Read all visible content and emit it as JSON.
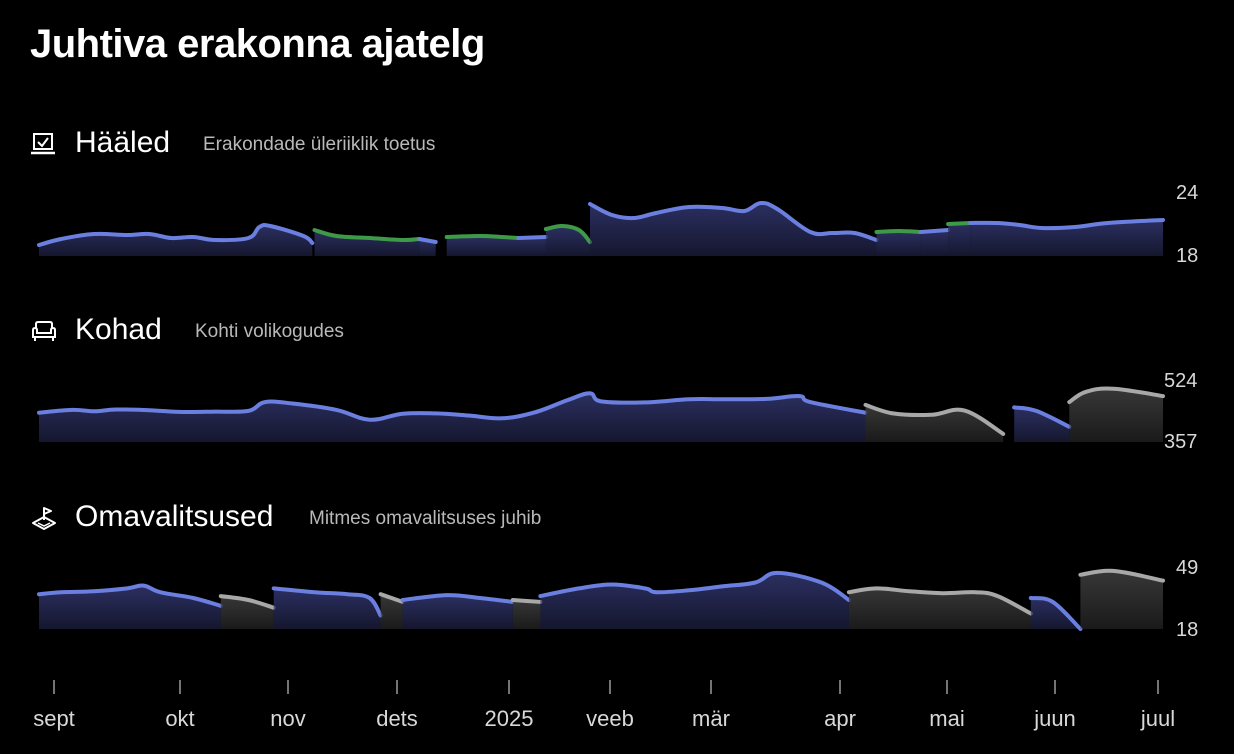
{
  "title": "Juhtiva erakonna ajatelg",
  "colors": {
    "blue": "#6b7fe0",
    "green": "#3f9a48",
    "gray": "#a8a8a8",
    "blue_fill": "#2e3266",
    "gray_fill": "#3a3a3a"
  },
  "panels": [
    {
      "title": "Hääled",
      "subtitle": "Erakondade üleriiklik toetus",
      "icon": "ballot-box-icon",
      "y_top_label": "24",
      "y_bottom_label": "18"
    },
    {
      "title": "Kohad",
      "subtitle": "Kohti volikogudes",
      "icon": "sofa-icon",
      "y_top_label": "524",
      "y_bottom_label": "357"
    },
    {
      "title": "Omavalitsused",
      "subtitle": "Mitmes omavalitsuses juhib",
      "icon": "location-pin-icon",
      "y_top_label": "49",
      "y_bottom_label": "18"
    }
  ],
  "x_axis": {
    "labels": [
      "sept",
      "okt",
      "nov",
      "dets",
      "2025",
      "veeb",
      "mär",
      "apr",
      "mai",
      "juun",
      "juul"
    ]
  },
  "chart_data": [
    {
      "type": "area",
      "title": "Hääled",
      "ylim": [
        18,
        24
      ],
      "x_range": [
        0,
        10.2
      ],
      "series": [
        {
          "color": "blue",
          "points": [
            [
              0,
              19.1
            ],
            [
              0.2,
              19.7
            ],
            [
              0.5,
              20.2
            ],
            [
              0.8,
              20.1
            ],
            [
              1,
              20.2
            ],
            [
              1.2,
              19.8
            ],
            [
              1.4,
              19.9
            ],
            [
              1.6,
              19.6
            ],
            [
              1.9,
              19.8
            ],
            [
              2,
              20.9
            ],
            [
              2.1,
              21
            ],
            [
              2.4,
              20
            ],
            [
              2.48,
              19.3
            ]
          ]
        },
        {
          "color": "green",
          "points": [
            [
              2.5,
              20.6
            ],
            [
              2.7,
              20
            ],
            [
              3,
              19.8
            ],
            [
              3.3,
              19.6
            ],
            [
              3.45,
              19.7
            ]
          ]
        },
        {
          "color": "blue",
          "points": [
            [
              3.45,
              19.7
            ],
            [
              3.6,
              19.4
            ]
          ]
        },
        {
          "color": "green",
          "points": [
            [
              3.7,
              19.9
            ],
            [
              4,
              20
            ],
            [
              4.2,
              19.9
            ],
            [
              4.35,
              19.8
            ]
          ]
        },
        {
          "color": "blue",
          "points": [
            [
              4.35,
              19.8
            ],
            [
              4.6,
              19.9
            ]
          ]
        },
        {
          "color": "green",
          "points": [
            [
              4.6,
              20.7
            ],
            [
              4.75,
              21
            ],
            [
              4.9,
              20.6
            ],
            [
              5,
              19.4
            ]
          ]
        },
        {
          "color": "blue",
          "points": [
            [
              5,
              23.2
            ],
            [
              5.2,
              22.1
            ],
            [
              5.4,
              21.8
            ],
            [
              5.6,
              22.3
            ],
            [
              5.9,
              22.9
            ],
            [
              6.2,
              22.8
            ],
            [
              6.4,
              22.5
            ],
            [
              6.55,
              23.3
            ],
            [
              6.7,
              22.7
            ],
            [
              7,
              20.4
            ],
            [
              7.2,
              20.3
            ],
            [
              7.4,
              20.3
            ],
            [
              7.6,
              19.6
            ]
          ]
        },
        {
          "color": "green",
          "points": [
            [
              7.6,
              20.4
            ],
            [
              7.8,
              20.5
            ],
            [
              8,
              20.4
            ]
          ]
        },
        {
          "color": "blue",
          "points": [
            [
              8,
              20.4
            ],
            [
              8.25,
              20.6
            ]
          ]
        },
        {
          "color": "green",
          "points": [
            [
              8.25,
              21.2
            ],
            [
              8.45,
              21.3
            ]
          ]
        },
        {
          "color": "blue",
          "points": [
            [
              8.45,
              21.3
            ],
            [
              8.7,
              21.3
            ],
            [
              8.9,
              21.1
            ],
            [
              9.1,
              20.8
            ],
            [
              9.4,
              20.9
            ],
            [
              9.7,
              21.3
            ],
            [
              10.2,
              21.6
            ]
          ]
        }
      ]
    },
    {
      "type": "area",
      "title": "Kohad",
      "ylim": [
        357,
        524
      ],
      "x_range": [
        0,
        10.2
      ],
      "series": [
        {
          "color": "blue",
          "points": [
            [
              0,
              440
            ],
            [
              0.3,
              448
            ],
            [
              0.5,
              444
            ],
            [
              0.7,
              449
            ],
            [
              1,
              447
            ],
            [
              1.3,
              442
            ],
            [
              1.6,
              443
            ],
            [
              1.9,
              445
            ],
            [
              2.05,
              470
            ],
            [
              2.3,
              466
            ],
            [
              2.7,
              448
            ],
            [
              3,
              420
            ],
            [
              3.3,
              437
            ],
            [
              3.6,
              438
            ],
            [
              3.9,
              432
            ],
            [
              4.2,
              424
            ],
            [
              4.5,
              441
            ],
            [
              4.8,
              476
            ],
            [
              5,
              495
            ],
            [
              5.1,
              472
            ],
            [
              5.5,
              469
            ],
            [
              5.9,
              478
            ],
            [
              6.2,
              478
            ],
            [
              6.6,
              479
            ],
            [
              6.9,
              487
            ],
            [
              7,
              470
            ],
            [
              7.5,
              440
            ]
          ]
        },
        {
          "color": "gray",
          "points": [
            [
              7.5,
              462
            ],
            [
              7.75,
              438
            ],
            [
              8.1,
              434
            ],
            [
              8.4,
              446
            ],
            [
              8.75,
              380
            ]
          ]
        },
        {
          "color": "blue",
          "points": [
            [
              8.85,
              455
            ],
            [
              9.05,
              445
            ],
            [
              9.35,
              400
            ]
          ]
        },
        {
          "color": "gray",
          "points": [
            [
              9.35,
              470
            ],
            [
              9.5,
              499
            ],
            [
              9.75,
              508
            ],
            [
              10.2,
              487
            ]
          ]
        }
      ]
    },
    {
      "type": "area",
      "title": "Omavalitsused",
      "ylim": [
        18,
        49
      ],
      "x_range": [
        0,
        10.2
      ],
      "series": [
        {
          "color": "blue",
          "points": [
            [
              0,
              36
            ],
            [
              0.2,
              37
            ],
            [
              0.5,
              37.5
            ],
            [
              0.8,
              39
            ],
            [
              0.95,
              40.4
            ],
            [
              1.1,
              37
            ],
            [
              1.4,
              34
            ],
            [
              1.65,
              30
            ]
          ]
        },
        {
          "color": "gray",
          "points": [
            [
              1.65,
              35
            ],
            [
              1.9,
              33
            ],
            [
              2.13,
              29
            ]
          ]
        },
        {
          "color": "blue",
          "points": [
            [
              2.13,
              39
            ],
            [
              2.5,
              37
            ],
            [
              2.8,
              36
            ],
            [
              3,
              34
            ],
            [
              3.1,
              25
            ]
          ]
        },
        {
          "color": "gray",
          "points": [
            [
              3.1,
              36
            ],
            [
              3.3,
              32
            ]
          ]
        },
        {
          "color": "blue",
          "points": [
            [
              3.3,
              33
            ],
            [
              3.7,
              35.5
            ],
            [
              4,
              34
            ],
            [
              4.3,
              32
            ]
          ]
        },
        {
          "color": "gray",
          "points": [
            [
              4.3,
              33
            ],
            [
              4.55,
              32
            ]
          ]
        },
        {
          "color": "blue",
          "points": [
            [
              4.55,
              35
            ],
            [
              4.9,
              39
            ],
            [
              5.2,
              41
            ],
            [
              5.5,
              39
            ],
            [
              5.6,
              37
            ],
            [
              5.9,
              38
            ],
            [
              6.2,
              40
            ],
            [
              6.5,
              42
            ],
            [
              6.7,
              47
            ],
            [
              7.1,
              42
            ],
            [
              7.35,
              33
            ]
          ]
        },
        {
          "color": "gray",
          "points": [
            [
              7.35,
              37
            ],
            [
              7.6,
              39
            ],
            [
              7.9,
              37.5
            ],
            [
              8.2,
              36.5
            ],
            [
              8.5,
              37
            ],
            [
              8.7,
              35
            ],
            [
              9,
              26
            ]
          ]
        },
        {
          "color": "blue",
          "points": [
            [
              9,
              34
            ],
            [
              9.2,
              32
            ],
            [
              9.45,
              18
            ]
          ]
        },
        {
          "color": "gray",
          "points": [
            [
              9.45,
              46
            ],
            [
              9.75,
              48
            ],
            [
              10.2,
              43
            ]
          ]
        }
      ]
    }
  ]
}
